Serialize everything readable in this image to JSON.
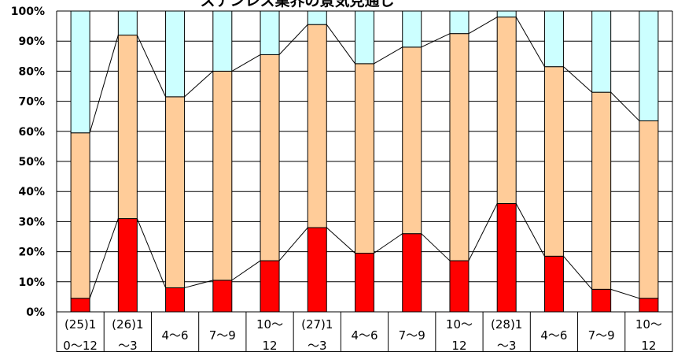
{
  "chart_data": {
    "type": "bar",
    "stacked": true,
    "percent": true,
    "title": "ステンレス業界の景気見通し",
    "xlabel": "",
    "ylabel": "",
    "ylim": [
      0,
      100
    ],
    "y_ticks": [
      "0%",
      "10%",
      "20%",
      "30%",
      "40%",
      "50%",
      "60%",
      "70%",
      "80%",
      "90%",
      "100%"
    ],
    "grid": true,
    "legend": "none",
    "categories": [
      [
        "(25)1",
        "0～12"
      ],
      [
        "(26)1",
        "～3"
      ],
      [
        "4～6"
      ],
      [
        "7～9"
      ],
      [
        "10～",
        "12"
      ],
      [
        "(27)1",
        "～3"
      ],
      [
        "4～6"
      ],
      [
        "7～9"
      ],
      [
        "10～",
        "12"
      ],
      [
        "(28)1",
        "～3"
      ],
      [
        "4～6"
      ],
      [
        "7～9"
      ],
      [
        "10～",
        "12"
      ]
    ],
    "series": [
      {
        "values": [
          4.5,
          31,
          8,
          10.5,
          17,
          28,
          19.5,
          26,
          17,
          36,
          18.5,
          7.5,
          4.5
        ],
        "color": "#ff0000"
      },
      {
        "values": [
          55,
          61,
          63.5,
          69.5,
          68.5,
          67.5,
          63,
          62,
          75.5,
          62,
          63,
          65.5,
          59
        ],
        "color": "#ffcc99"
      },
      {
        "values": [
          40.5,
          8,
          28.5,
          20,
          14.5,
          4.5,
          17.5,
          12,
          7.5,
          2,
          18.5,
          27,
          36.5
        ],
        "color": "#ccffff"
      }
    ],
    "series_lines": true
  }
}
